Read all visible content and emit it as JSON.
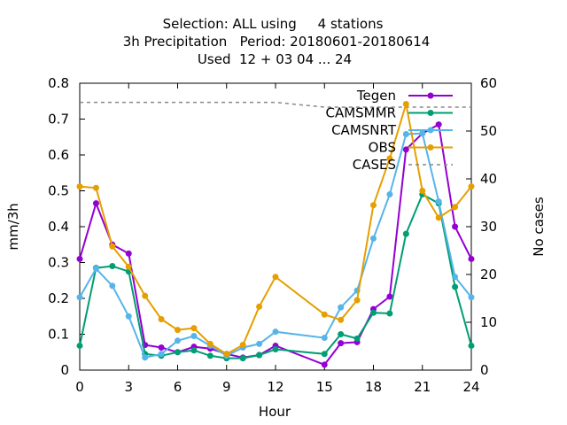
{
  "chart_data": {
    "type": "line",
    "title_lines": [
      "Selection: ALL using     4 stations",
      "3h Precipitation   Period: 20180601-20180614",
      "Used  12 + 03 04 ... 24"
    ],
    "xlabel": "Hour",
    "ylabel": "mm/3h",
    "y2label": "No cases",
    "xlim": [
      0,
      24
    ],
    "ylim": [
      0,
      0.8
    ],
    "y2lim": [
      0,
      60
    ],
    "xticks": [
      0,
      3,
      6,
      9,
      12,
      15,
      18,
      21,
      24
    ],
    "yticks": [
      0,
      0.1,
      0.2,
      0.3,
      0.4,
      0.5,
      0.6,
      0.7,
      0.8
    ],
    "y2ticks": [
      0,
      10,
      20,
      30,
      40,
      50,
      60
    ],
    "legend_position": "top-right",
    "series": [
      {
        "name": "Tegen",
        "color": "#9400d3",
        "axis": "y",
        "marker": "circle",
        "points": [
          [
            0,
            0.31
          ],
          [
            1,
            0.465
          ],
          [
            2,
            0.35
          ],
          [
            3,
            0.325
          ],
          [
            4,
            0.07
          ],
          [
            5,
            0.063
          ],
          [
            6,
            0.05
          ],
          [
            7,
            0.065
          ],
          [
            8,
            0.06
          ],
          [
            9,
            0.045
          ],
          [
            10,
            0.035
          ],
          [
            11,
            0.042
          ],
          [
            12,
            0.068
          ],
          [
            15,
            0.015
          ],
          [
            16,
            0.075
          ],
          [
            17,
            0.078
          ],
          [
            18,
            0.17
          ],
          [
            19,
            0.205
          ],
          [
            20,
            0.615
          ],
          [
            21,
            0.66
          ],
          [
            22,
            0.685
          ],
          [
            23,
            0.4
          ],
          [
            24,
            0.31
          ]
        ]
      },
      {
        "name": "CAMSMMR",
        "color": "#009e73",
        "axis": "y",
        "marker": "circle",
        "points": [
          [
            0,
            0.068
          ],
          [
            1,
            0.285
          ],
          [
            2,
            0.29
          ],
          [
            3,
            0.275
          ],
          [
            4,
            0.045
          ],
          [
            5,
            0.04
          ],
          [
            6,
            0.05
          ],
          [
            7,
            0.055
          ],
          [
            8,
            0.04
          ],
          [
            9,
            0.033
          ],
          [
            10,
            0.033
          ],
          [
            11,
            0.042
          ],
          [
            12,
            0.058
          ],
          [
            15,
            0.045
          ],
          [
            16,
            0.1
          ],
          [
            17,
            0.088
          ],
          [
            18,
            0.16
          ],
          [
            19,
            0.158
          ],
          [
            20,
            0.38
          ],
          [
            21,
            0.49
          ],
          [
            22,
            0.465
          ],
          [
            23,
            0.232
          ],
          [
            24,
            0.068
          ]
        ]
      },
      {
        "name": "CAMSNRT",
        "color": "#56b4e9",
        "axis": "y",
        "marker": "circle",
        "points": [
          [
            0,
            0.203
          ],
          [
            1,
            0.283
          ],
          [
            2,
            0.235
          ],
          [
            3,
            0.15
          ],
          [
            4,
            0.035
          ],
          [
            5,
            0.045
          ],
          [
            6,
            0.082
          ],
          [
            7,
            0.095
          ],
          [
            8,
            0.068
          ],
          [
            9,
            0.04
          ],
          [
            10,
            0.063
          ],
          [
            11,
            0.073
          ],
          [
            12,
            0.107
          ],
          [
            15,
            0.09
          ],
          [
            16,
            0.175
          ],
          [
            17,
            0.222
          ],
          [
            18,
            0.367
          ],
          [
            19,
            0.49
          ],
          [
            20,
            0.658
          ],
          [
            21,
            0.66
          ],
          [
            22,
            0.47
          ],
          [
            23,
            0.26
          ],
          [
            24,
            0.203
          ]
        ]
      },
      {
        "name": "OBS",
        "color": "#e69f00",
        "axis": "y",
        "marker": "circle",
        "points": [
          [
            0,
            0.512
          ],
          [
            1,
            0.508
          ],
          [
            2,
            0.345
          ],
          [
            3,
            0.288
          ],
          [
            4,
            0.207
          ],
          [
            5,
            0.142
          ],
          [
            6,
            0.112
          ],
          [
            7,
            0.117
          ],
          [
            8,
            0.073
          ],
          [
            9,
            0.045
          ],
          [
            10,
            0.07
          ],
          [
            11,
            0.177
          ],
          [
            12,
            0.26
          ],
          [
            15,
            0.155
          ],
          [
            16,
            0.14
          ],
          [
            17,
            0.195
          ],
          [
            18,
            0.46
          ],
          [
            19,
            0.59
          ],
          [
            20,
            0.742
          ],
          [
            21,
            0.5
          ],
          [
            22,
            0.425
          ],
          [
            23,
            0.455
          ],
          [
            24,
            0.512
          ]
        ]
      },
      {
        "name": "CASES",
        "color": "#888888",
        "axis": "y2",
        "dashed": true,
        "points": [
          [
            0,
            56
          ],
          [
            12,
            56
          ],
          [
            15,
            55
          ],
          [
            24,
            55
          ]
        ]
      }
    ]
  }
}
